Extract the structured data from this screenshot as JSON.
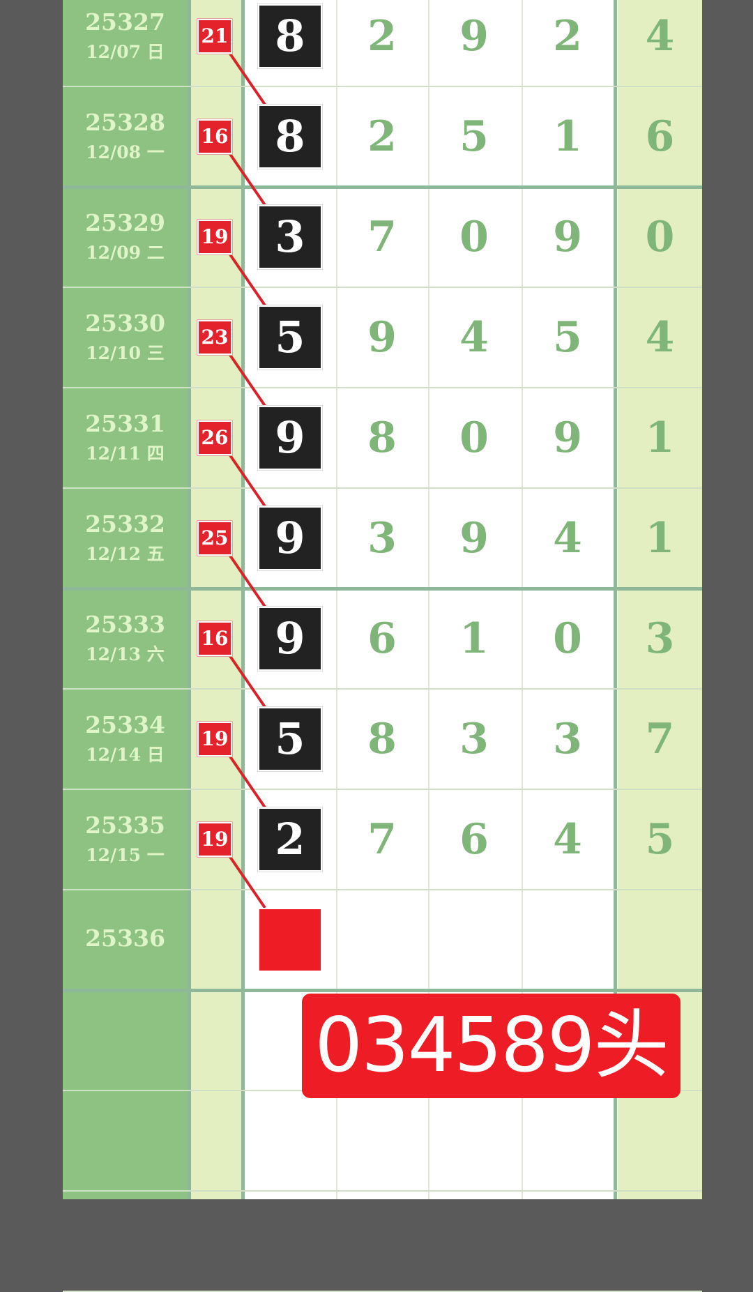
{
  "rows": [
    {
      "period": "25327",
      "date": "12/07 日",
      "tag": "21",
      "head": "8",
      "digits": [
        "2",
        "9",
        "2"
      ],
      "last": "4"
    },
    {
      "period": "25328",
      "date": "12/08 一",
      "tag": "16",
      "head": "8",
      "digits": [
        "2",
        "5",
        "1"
      ],
      "last": "6"
    },
    {
      "period": "25329",
      "date": "12/09 二",
      "tag": "19",
      "head": "3",
      "digits": [
        "7",
        "0",
        "9"
      ],
      "last": "0"
    },
    {
      "period": "25330",
      "date": "12/10 三",
      "tag": "23",
      "head": "5",
      "digits": [
        "9",
        "4",
        "5"
      ],
      "last": "4"
    },
    {
      "period": "25331",
      "date": "12/11 四",
      "tag": "26",
      "head": "9",
      "digits": [
        "8",
        "0",
        "9"
      ],
      "last": "1"
    },
    {
      "period": "25332",
      "date": "12/12 五",
      "tag": "25",
      "head": "9",
      "digits": [
        "3",
        "9",
        "4"
      ],
      "last": "1"
    },
    {
      "period": "25333",
      "date": "12/13 六",
      "tag": "16",
      "head": "9",
      "digits": [
        "6",
        "1",
        "0"
      ],
      "last": "3"
    },
    {
      "period": "25334",
      "date": "12/14 日",
      "tag": "19",
      "head": "5",
      "digits": [
        "8",
        "3",
        "3"
      ],
      "last": "7"
    },
    {
      "period": "25335",
      "date": "12/15 一",
      "tag": "19",
      "head": "2",
      "digits": [
        "7",
        "6",
        "4"
      ],
      "last": "5"
    },
    {
      "period": "25336",
      "date": "",
      "tag": "",
      "head": "",
      "digits": [
        "",
        "",
        ""
      ],
      "last": ""
    }
  ],
  "prediction": "034589头",
  "colors": {
    "period_bg": "#8dc283",
    "tag_col_bg": "#e3efc0",
    "last_col_bg": "#e3efc0",
    "red": "#e3222b",
    "black": "#222222",
    "digit": "#7fb578"
  }
}
